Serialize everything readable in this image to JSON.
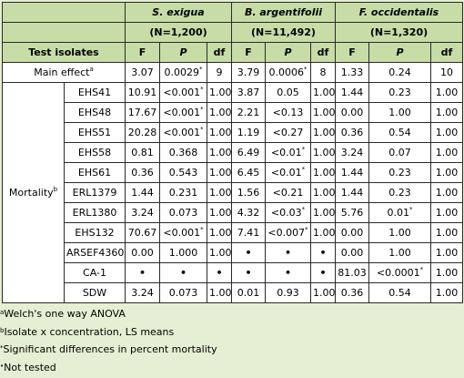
{
  "columns": {
    "species": [
      {
        "name": "S. exigua",
        "n": "(N=1,200)"
      },
      {
        "name": "B. argentifolii",
        "n": "(N=11,492)"
      },
      {
        "name": "F. occidentalis",
        "n": "(N=1,320)"
      }
    ],
    "test_isolates_label": "Test isolates",
    "stat_labels": [
      "F",
      "P",
      "df"
    ]
  },
  "main_effect": {
    "label": "Main effect",
    "sup": "a",
    "values": [
      {
        "v": "3.07",
        "sup": ""
      },
      {
        "v": "0.0029",
        "sup": "*"
      },
      {
        "v": "9",
        "sup": ""
      },
      {
        "v": "3.79",
        "sup": ""
      },
      {
        "v": "0.0006",
        "sup": "*"
      },
      {
        "v": "8",
        "sup": ""
      },
      {
        "v": "1.33",
        "sup": ""
      },
      {
        "v": "0.24",
        "sup": ""
      },
      {
        "v": "10",
        "sup": ""
      }
    ]
  },
  "mortality": {
    "label": "Mortality",
    "sup": "b",
    "rows": [
      {
        "isolate": "EHS41",
        "cells": [
          {
            "v": "10.91"
          },
          {
            "v": "<0.001",
            "sup": "*"
          },
          {
            "v": "1.00"
          },
          {
            "v": "3.87"
          },
          {
            "v": "0.05"
          },
          {
            "v": "1.00"
          },
          {
            "v": "1.44"
          },
          {
            "v": "0.23"
          },
          {
            "v": "1.00"
          }
        ]
      },
      {
        "isolate": "EHS48",
        "cells": [
          {
            "v": "17.67"
          },
          {
            "v": "<0.001",
            "sup": "*"
          },
          {
            "v": "1.00"
          },
          {
            "v": "2.21"
          },
          {
            "v": "<0.13"
          },
          {
            "v": "1.00"
          },
          {
            "v": "0.00"
          },
          {
            "v": "1.00"
          },
          {
            "v": "1.00"
          }
        ]
      },
      {
        "isolate": "EHS51",
        "cells": [
          {
            "v": "20.28"
          },
          {
            "v": "<0.001",
            "sup": "*"
          },
          {
            "v": "1.00"
          },
          {
            "v": "1.19"
          },
          {
            "v": "<0.27"
          },
          {
            "v": "1.00"
          },
          {
            "v": "0.36"
          },
          {
            "v": "0.54"
          },
          {
            "v": "1.00"
          }
        ]
      },
      {
        "isolate": "EHS58",
        "cells": [
          {
            "v": "0.81"
          },
          {
            "v": "0.368"
          },
          {
            "v": "1.00"
          },
          {
            "v": "6.49"
          },
          {
            "v": "<0.01",
            "sup": "*"
          },
          {
            "v": "1.00"
          },
          {
            "v": "3.24"
          },
          {
            "v": "0.07"
          },
          {
            "v": "1.00"
          }
        ]
      },
      {
        "isolate": "EHS61",
        "cells": [
          {
            "v": "0.36"
          },
          {
            "v": "0.543"
          },
          {
            "v": "1.00"
          },
          {
            "v": "6.45"
          },
          {
            "v": "<0.01",
            "sup": "*"
          },
          {
            "v": "1.00"
          },
          {
            "v": "1.44"
          },
          {
            "v": "0.23"
          },
          {
            "v": "1.00"
          }
        ]
      },
      {
        "isolate": "ERL1379",
        "cells": [
          {
            "v": "1.44"
          },
          {
            "v": "0.231"
          },
          {
            "v": "1.00"
          },
          {
            "v": "1.56"
          },
          {
            "v": "<0.21"
          },
          {
            "v": "1.00"
          },
          {
            "v": "1.44"
          },
          {
            "v": "0.23"
          },
          {
            "v": "1.00"
          }
        ]
      },
      {
        "isolate": "ERL1380",
        "cells": [
          {
            "v": "3.24"
          },
          {
            "v": "0.073"
          },
          {
            "v": "1.00"
          },
          {
            "v": "4.32"
          },
          {
            "v": "<0.03",
            "sup": "*"
          },
          {
            "v": "1.00"
          },
          {
            "v": "5.76"
          },
          {
            "v": "0.01",
            "sup": "*"
          },
          {
            "v": "1.00"
          }
        ]
      },
      {
        "isolate": "EHS132",
        "cells": [
          {
            "v": "70.67"
          },
          {
            "v": "<0.001",
            "sup": "*"
          },
          {
            "v": "1.00"
          },
          {
            "v": "7.41"
          },
          {
            "v": "<0.007",
            "sup": "*"
          },
          {
            "v": "1.00"
          },
          {
            "v": "0.00"
          },
          {
            "v": "1.00"
          },
          {
            "v": "1.00"
          }
        ]
      },
      {
        "isolate": "ARSEF4360",
        "cells": [
          {
            "v": "0.00"
          },
          {
            "v": "1.000"
          },
          {
            "v": "1.00"
          },
          {
            "v": "•"
          },
          {
            "v": "•"
          },
          {
            "v": "•"
          },
          {
            "v": "0.00"
          },
          {
            "v": "1.00"
          },
          {
            "v": "1.00"
          }
        ]
      },
      {
        "isolate": "CA-1",
        "cells": [
          {
            "v": "•"
          },
          {
            "v": "•"
          },
          {
            "v": "•"
          },
          {
            "v": "•"
          },
          {
            "v": "•"
          },
          {
            "v": "•"
          },
          {
            "v": "81.03"
          },
          {
            "v": "<0.0001",
            "sup": "*"
          },
          {
            "v": "1.00"
          }
        ]
      },
      {
        "isolate": "SDW",
        "cells": [
          {
            "v": "3.24"
          },
          {
            "v": "0.073"
          },
          {
            "v": "1.00"
          },
          {
            "v": "0.01"
          },
          {
            "v": "0.93"
          },
          {
            "v": "1.00"
          },
          {
            "v": "0.36"
          },
          {
            "v": "0.54"
          },
          {
            "v": "1.00"
          }
        ]
      }
    ]
  },
  "footnotes": [
    {
      "mark": "a",
      "text": "Welch's one way ANOVA"
    },
    {
      "mark": "b",
      "text": "Isolate x concentration, LS means"
    },
    {
      "mark": "*",
      "text": "Significant differences in percent mortality"
    },
    {
      "mark": "•",
      "text": "Not tested"
    }
  ],
  "colors": {
    "background": "#e5efd3",
    "header": "#c7dca6",
    "cell": "#ffffff"
  }
}
